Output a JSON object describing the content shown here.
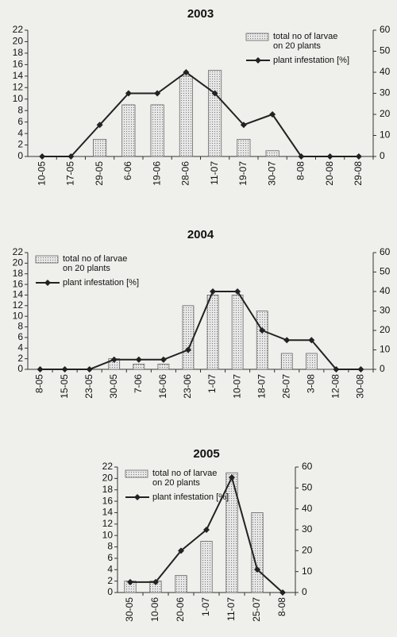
{
  "chart_data": [
    {
      "type": "combo",
      "title": "2003",
      "categories": [
        "10-05",
        "17-05",
        "29-05",
        "6-06",
        "19-06",
        "28-06",
        "11-07",
        "19-07",
        "30-07",
        "8-08",
        "20-08",
        "29-08"
      ],
      "series": [
        {
          "name": "total no of larvae on 20 plants",
          "type": "bar",
          "color": "#c8c8c8",
          "values": [
            0,
            0,
            3,
            9,
            9,
            14,
            15,
            3,
            1,
            0,
            0,
            0
          ]
        },
        {
          "name": "plant infestation [%]",
          "type": "line",
          "axis": "y2",
          "color": "#222222",
          "values": [
            0,
            0,
            15,
            30,
            30,
            40,
            30,
            15,
            20,
            0,
            0,
            0
          ]
        }
      ],
      "ylim": [
        0,
        22
      ],
      "yticks": [
        0,
        2,
        4,
        6,
        8,
        10,
        12,
        14,
        16,
        18,
        20,
        22
      ],
      "y2lim": [
        0,
        60
      ],
      "y2ticks": [
        0,
        10,
        20,
        30,
        40,
        50,
        60
      ],
      "legend": "upper right"
    },
    {
      "type": "combo",
      "title": "2004",
      "categories": [
        "8-05",
        "15-05",
        "23-05",
        "30-05",
        "7-06",
        "16-06",
        "23-06",
        "1-07",
        "10-07",
        "18-07",
        "26-07",
        "3-08",
        "12-08",
        "30-08"
      ],
      "series": [
        {
          "name": "total no of larvae on 20 plants",
          "type": "bar",
          "color": "#c8c8c8",
          "values": [
            0,
            0,
            0,
            2,
            1,
            1,
            12,
            14,
            14,
            11,
            3,
            3,
            0,
            0
          ]
        },
        {
          "name": "plant infestation [%]",
          "type": "line",
          "axis": "y2",
          "color": "#222222",
          "values": [
            0,
            0,
            0,
            5,
            5,
            5,
            10,
            40,
            40,
            20,
            15,
            15,
            0,
            0
          ]
        }
      ],
      "ylim": [
        0,
        22
      ],
      "yticks": [
        0,
        2,
        4,
        6,
        8,
        10,
        12,
        14,
        16,
        18,
        20,
        22
      ],
      "y2lim": [
        0,
        60
      ],
      "y2ticks": [
        0,
        10,
        20,
        30,
        40,
        50,
        60
      ],
      "legend": "upper left"
    },
    {
      "type": "combo",
      "title": "2005",
      "categories": [
        "30-05",
        "10-06",
        "20-06",
        "1-07",
        "11-07",
        "25-07",
        "8-08"
      ],
      "series": [
        {
          "name": "total no of larvae on 20 plants",
          "type": "bar",
          "color": "#c8c8c8",
          "values": [
            2,
            2,
            3,
            9,
            21,
            14,
            0
          ]
        },
        {
          "name": "plant infestation [%]",
          "type": "line",
          "axis": "y2",
          "color": "#222222",
          "values": [
            5,
            5,
            20,
            30,
            55,
            11,
            0
          ]
        }
      ],
      "ylim": [
        0,
        22
      ],
      "yticks": [
        0,
        2,
        4,
        6,
        8,
        10,
        12,
        14,
        16,
        18,
        20,
        22
      ],
      "y2lim": [
        0,
        60
      ],
      "y2ticks": [
        0,
        10,
        20,
        30,
        40,
        50,
        60
      ],
      "legend": "upper left"
    }
  ]
}
